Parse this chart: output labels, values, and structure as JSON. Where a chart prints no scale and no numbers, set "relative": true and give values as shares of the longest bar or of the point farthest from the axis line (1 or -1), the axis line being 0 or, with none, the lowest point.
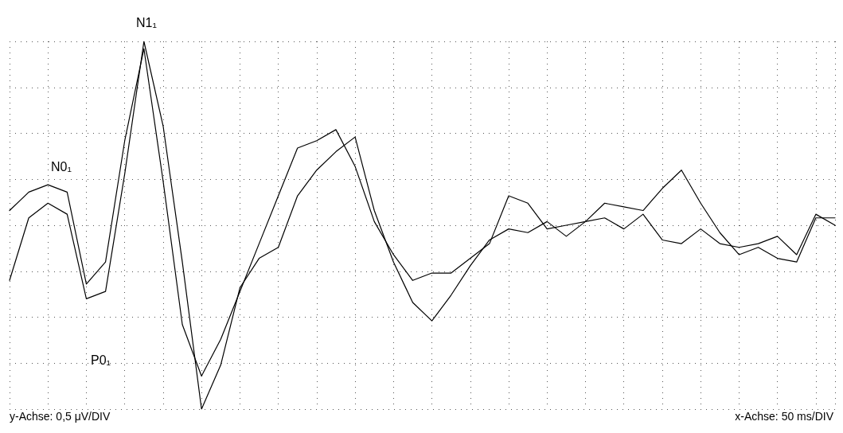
{
  "chart_data": {
    "type": "line",
    "relative": true,
    "grid": true,
    "marker": "none",
    "line_style": "solid",
    "categories": [
      null,
      null,
      null,
      null,
      null,
      null,
      null,
      null,
      null,
      null,
      null,
      null,
      null,
      null,
      null,
      null,
      null,
      null,
      null,
      null,
      null,
      null,
      null,
      null,
      null,
      null,
      null,
      null,
      null,
      null,
      null,
      null,
      null,
      null,
      null,
      null,
      null,
      null,
      null,
      null,
      null,
      null,
      null,
      null
    ],
    "series": [
      {
        "color": "#000000",
        "values": [
          0.54,
          0.59,
          0.61,
          0.59,
          0.34,
          0.4,
          0.73,
          0.98,
          0.62,
          0.23,
          0.09,
          0.19,
          0.32,
          0.45,
          0.58,
          0.71,
          0.73,
          0.76,
          0.66,
          0.51,
          0.42,
          0.35,
          0.37,
          0.37,
          0.41,
          0.45,
          0.58,
          0.56,
          0.49,
          0.5,
          0.51,
          0.56,
          0.55,
          0.54,
          0.6,
          0.65,
          0.56,
          0.48,
          0.42,
          0.44,
          0.41,
          0.4,
          0.52,
          0.52
        ]
      },
      {
        "color": "#000000",
        "values": [
          0.35,
          0.52,
          0.56,
          0.53,
          0.3,
          0.32,
          0.64,
          1,
          0.77,
          0.4,
          0,
          0.12,
          0.33,
          0.41,
          0.44,
          0.58,
          0.65,
          0.7,
          0.74,
          0.54,
          0.4,
          0.29,
          0.24,
          0.31,
          0.39,
          0.46,
          0.49,
          0.48,
          0.51,
          0.47,
          0.51,
          0.52,
          0.49,
          0.53,
          0.46,
          0.45,
          0.49,
          0.45,
          0.44,
          0.45,
          0.47,
          0.42,
          0.53,
          0.5
        ]
      }
    ],
    "annotations": [
      "N0₁",
      "N1₁",
      "P0₁",
      "y-Achse: 0,5 μV/DIV",
      "x-Achse: 50 ms/DIV"
    ]
  }
}
